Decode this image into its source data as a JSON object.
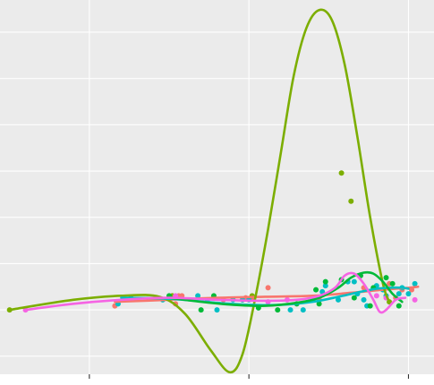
{
  "chart_data": {
    "type": "scatter",
    "title": "",
    "xlabel": "",
    "ylabel": "",
    "xlim": [
      -0.28,
      1.08
    ],
    "ylim": [
      -0.32,
      1.54
    ],
    "x_gridlines": [
      0.0,
      0.5,
      1.0
    ],
    "y_gridlines": [
      -0.23,
      0.0,
      0.23,
      0.46,
      0.69,
      0.92,
      1.15,
      1.38
    ],
    "grid": true,
    "background": "#EBEBEB",
    "gridline_color": "#FFFFFF",
    "legend": "none",
    "series": [
      {
        "color": "#F8766D",
        "points": [
          [
            0.08,
            0.02
          ],
          [
            0.26,
            0.07
          ],
          [
            0.27,
            0.03
          ],
          [
            0.28,
            0.07
          ],
          [
            0.29,
            0.07
          ],
          [
            0.42,
            0.05
          ],
          [
            0.48,
            0.05
          ],
          [
            0.49,
            0.06
          ],
          [
            0.51,
            0.06
          ],
          [
            0.56,
            0.11
          ],
          [
            0.72,
            0.06
          ],
          [
            0.86,
            0.11
          ],
          [
            0.94,
            0.13
          ],
          [
            0.96,
            0.06
          ],
          [
            0.98,
            0.1
          ],
          [
            1.01,
            0.1
          ]
        ],
        "smooth": [
          [
            0.08,
            0.04
          ],
          [
            0.25,
            0.05
          ],
          [
            0.4,
            0.06
          ],
          [
            0.55,
            0.065
          ],
          [
            0.7,
            0.07
          ],
          [
            0.82,
            0.085
          ],
          [
            0.92,
            0.1
          ],
          [
            1.0,
            0.11
          ],
          [
            1.03,
            0.115
          ]
        ]
      },
      {
        "color": "#7CAE00",
        "points": [
          [
            -0.25,
            0.0
          ],
          [
            0.26,
            0.07
          ],
          [
            0.51,
            0.07
          ],
          [
            0.79,
            0.68
          ],
          [
            0.82,
            0.54
          ],
          [
            0.94,
            0.04
          ]
        ],
        "smooth": [
          [
            -0.25,
            0.0
          ],
          [
            -0.05,
            0.05
          ],
          [
            0.1,
            0.07
          ],
          [
            0.22,
            0.065
          ],
          [
            0.3,
            -0.02
          ],
          [
            0.38,
            -0.2
          ],
          [
            0.44,
            -0.31
          ],
          [
            0.48,
            -0.22
          ],
          [
            0.52,
            0.06
          ],
          [
            0.56,
            0.4
          ],
          [
            0.6,
            0.78
          ],
          [
            0.64,
            1.16
          ],
          [
            0.68,
            1.4
          ],
          [
            0.72,
            1.49
          ],
          [
            0.76,
            1.44
          ],
          [
            0.8,
            1.22
          ],
          [
            0.84,
            0.86
          ],
          [
            0.88,
            0.46
          ],
          [
            0.92,
            0.13
          ],
          [
            0.94,
            0.04
          ]
        ]
      },
      {
        "color": "#00BFC4",
        "points": [
          [
            0.09,
            0.03
          ],
          [
            0.13,
            0.06
          ],
          [
            0.23,
            0.05
          ],
          [
            0.34,
            0.07
          ],
          [
            0.37,
            0.05
          ],
          [
            0.4,
            0.0
          ],
          [
            0.45,
            0.05
          ],
          [
            0.48,
            0.05
          ],
          [
            0.5,
            0.05
          ],
          [
            0.63,
            0.0
          ],
          [
            0.67,
            0.0
          ],
          [
            0.7,
            0.05
          ],
          [
            0.73,
            0.09
          ],
          [
            0.74,
            0.12
          ],
          [
            0.78,
            0.05
          ],
          [
            0.84,
            0.08
          ],
          [
            0.86,
            0.05
          ],
          [
            0.87,
            0.02
          ],
          [
            0.9,
            0.12
          ],
          [
            0.92,
            0.1
          ],
          [
            0.93,
            0.07
          ],
          [
            0.97,
            0.08
          ],
          [
            0.98,
            0.11
          ],
          [
            1.0,
            0.08
          ],
          [
            1.02,
            0.13
          ],
          [
            0.81,
            0.14
          ],
          [
            0.83,
            0.14
          ]
        ],
        "smooth": [
          [
            0.1,
            0.06
          ],
          [
            0.25,
            0.055
          ],
          [
            0.4,
            0.035
          ],
          [
            0.5,
            0.025
          ],
          [
            0.6,
            0.025
          ],
          [
            0.7,
            0.04
          ],
          [
            0.78,
            0.065
          ],
          [
            0.85,
            0.09
          ],
          [
            0.9,
            0.105
          ],
          [
            0.94,
            0.11
          ],
          [
            0.98,
            0.11
          ],
          [
            1.0,
            0.105
          ]
        ]
      },
      {
        "color": "#00BA38",
        "points": [
          [
            0.25,
            0.07
          ],
          [
            0.35,
            0.0
          ],
          [
            0.39,
            0.07
          ],
          [
            0.53,
            0.01
          ],
          [
            0.59,
            0.0
          ],
          [
            0.65,
            0.03
          ],
          [
            0.71,
            0.1
          ],
          [
            0.79,
            0.15
          ],
          [
            0.83,
            0.06
          ],
          [
            0.85,
            0.17
          ],
          [
            0.88,
            0.02
          ],
          [
            0.89,
            0.11
          ],
          [
            0.93,
            0.16
          ],
          [
            0.95,
            0.13
          ],
          [
            0.97,
            0.02
          ],
          [
            0.72,
            0.03
          ],
          [
            0.74,
            0.14
          ]
        ],
        "smooth": [
          [
            0.25,
            0.06
          ],
          [
            0.35,
            0.04
          ],
          [
            0.45,
            0.025
          ],
          [
            0.55,
            0.02
          ],
          [
            0.65,
            0.035
          ],
          [
            0.72,
            0.06
          ],
          [
            0.78,
            0.11
          ],
          [
            0.82,
            0.16
          ],
          [
            0.86,
            0.185
          ],
          [
            0.89,
            0.18
          ],
          [
            0.92,
            0.14
          ],
          [
            0.95,
            0.08
          ],
          [
            0.98,
            0.04
          ]
        ]
      },
      {
        "color": "#F564E3",
        "points": [
          [
            -0.2,
            0.0
          ],
          [
            0.27,
            0.07
          ],
          [
            0.56,
            0.04
          ],
          [
            0.62,
            0.05
          ],
          [
            0.93,
            0.06
          ],
          [
            1.02,
            0.05
          ],
          [
            0.9,
            0.07
          ]
        ],
        "smooth": [
          [
            -0.2,
            0.0
          ],
          [
            -0.05,
            0.03
          ],
          [
            0.1,
            0.05
          ],
          [
            0.25,
            0.06
          ],
          [
            0.4,
            0.05
          ],
          [
            0.55,
            0.045
          ],
          [
            0.65,
            0.05
          ],
          [
            0.72,
            0.07
          ],
          [
            0.77,
            0.11
          ],
          [
            0.8,
            0.17
          ],
          [
            0.83,
            0.18
          ],
          [
            0.86,
            0.13
          ],
          [
            0.89,
            0.05
          ],
          [
            0.91,
            -0.01
          ],
          [
            0.93,
            0.0
          ],
          [
            0.96,
            0.05
          ],
          [
            0.99,
            0.06
          ]
        ]
      }
    ]
  }
}
